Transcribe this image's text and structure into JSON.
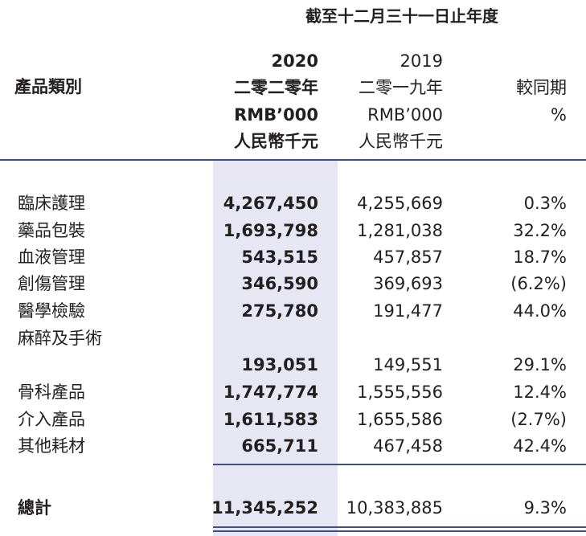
{
  "header": {
    "period": "截至十二月三十一日止年度",
    "category": "產品類別",
    "col2020": {
      "year": "2020",
      "year_cn": "二零二零年",
      "unit": "RMB’000",
      "unit_cn": "人民幣千元"
    },
    "col2019": {
      "year": "2019",
      "year_cn": "二零一九年",
      "unit": "RMB’000",
      "unit_cn": "人民幣千元"
    },
    "yoy": {
      "label": "較同期",
      "unit": "%"
    }
  },
  "rows": [
    {
      "label": "臨床護理",
      "v2020": "4,267,450",
      "v2019": "4,255,669",
      "yoy": "0.3%"
    },
    {
      "label": "藥品包裝",
      "v2020": "1,693,798",
      "v2019": "1,281,038",
      "yoy": "32.2%"
    },
    {
      "label": "血液管理",
      "v2020": "543,515",
      "v2019": "457,857",
      "yoy": "18.7%"
    },
    {
      "label": "創傷管理",
      "v2020": "346,590",
      "v2019": "369,693",
      "yoy": "(6.2%)"
    },
    {
      "label": "醫學檢驗",
      "v2020": "275,780",
      "v2019": "191,477",
      "yoy": "44.0%"
    },
    {
      "label": "麻醉及手術",
      "v2020": "",
      "v2019": "",
      "yoy": ""
    },
    {
      "label": "",
      "v2020": "193,051",
      "v2019": "149,551",
      "yoy": "29.1%"
    },
    {
      "label": "骨科產品",
      "v2020": "1,747,774",
      "v2019": "1,555,556",
      "yoy": "12.4%"
    },
    {
      "label": "介入產品",
      "v2020": "1,611,583",
      "v2019": "1,655,586",
      "yoy": "(2.7%)"
    },
    {
      "label": "其他耗材",
      "v2020": "665,711",
      "v2019": "467,458",
      "yoy": "42.4%"
    }
  ],
  "total": {
    "label": "總計",
    "v2020": "11,345,252",
    "v2019": "10,383,885",
    "yoy": "9.3%"
  }
}
